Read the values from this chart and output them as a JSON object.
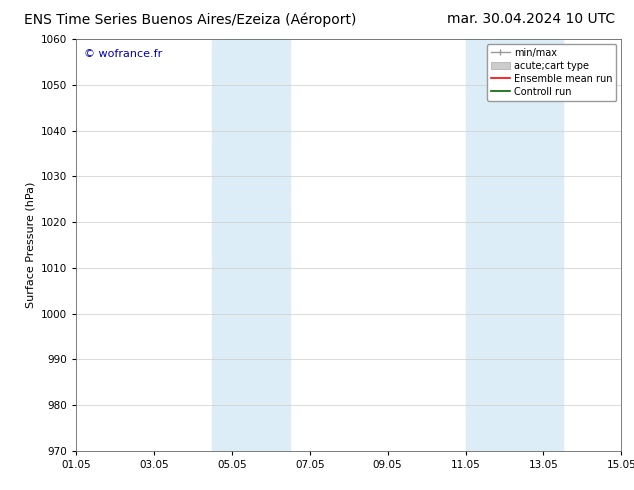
{
  "title": "ENS Time Series Buenos Aires/Ezeiza (Aéroport)",
  "title_right": "mar. 30.04.2024 10 UTC",
  "ylabel": "Surface Pressure (hPa)",
  "ylim": [
    970,
    1060
  ],
  "yticks": [
    970,
    980,
    990,
    1000,
    1010,
    1020,
    1030,
    1040,
    1050,
    1060
  ],
  "xtick_labels": [
    "01.05",
    "03.05",
    "05.05",
    "07.05",
    "09.05",
    "11.05",
    "13.05",
    "15.05"
  ],
  "xtick_positions": [
    0,
    2,
    4,
    6,
    8,
    10,
    12,
    14
  ],
  "xlim": [
    0,
    14
  ],
  "shaded_regions": [
    {
      "x_start": 3.5,
      "x_end": 4.5,
      "color": "#ddedf8"
    },
    {
      "x_start": 4.5,
      "x_end": 5.5,
      "color": "#ddedf8"
    },
    {
      "x_start": 10.0,
      "x_end": 11.0,
      "color": "#ddedf8"
    },
    {
      "x_start": 11.0,
      "x_end": 12.5,
      "color": "#ddedf8"
    }
  ],
  "background_color": "#ffffff",
  "plot_bg_color": "#ffffff",
  "grid_color": "#cccccc",
  "watermark_text": "© wofrance.fr",
  "watermark_color": "#0000bb",
  "title_fontsize": 10,
  "axis_label_fontsize": 8,
  "tick_fontsize": 7.5,
  "legend_fontsize": 7,
  "watermark_fontsize": 8
}
